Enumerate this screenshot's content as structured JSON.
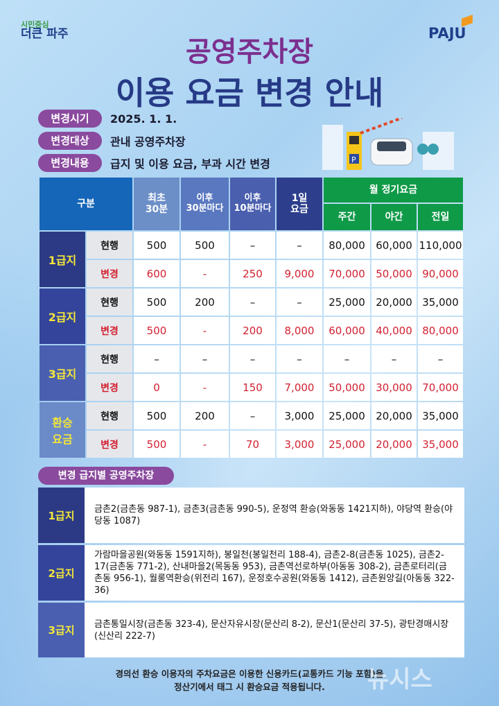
{
  "logo_left": {
    "small": "시민중심",
    "big": "더큰 파주"
  },
  "logo_right": "PAJU",
  "title": {
    "line1": "공영주차장",
    "line2": "이용 요금 변경 안내"
  },
  "info": [
    {
      "label": "변경시기",
      "value": "2025. 1. 1."
    },
    {
      "label": "변경대상",
      "value": "관내 공영주차장"
    },
    {
      "label": "변경내용",
      "value": "급지 및 이용 요금, 부과 시간 변경"
    }
  ],
  "table": {
    "headers": {
      "category": "구분",
      "first30": "최초\n30분",
      "per30": "이후\n30분마다",
      "per10": "이후\n10분마다",
      "daily": "1일\n요금",
      "monthly": "월 정기요금",
      "day": "주간",
      "night": "야간",
      "full": "전일"
    },
    "groups": [
      {
        "name": "1급지",
        "rows": [
          {
            "type": "현행",
            "values": [
              "500",
              "500",
              "–",
              "–",
              "80,000",
              "60,000",
              "110,000"
            ]
          },
          {
            "type": "변경",
            "values": [
              "600",
              "-",
              "250",
              "9,000",
              "70,000",
              "50,000",
              "90,000"
            ]
          }
        ]
      },
      {
        "name": "2급지",
        "rows": [
          {
            "type": "현행",
            "values": [
              "500",
              "200",
              "–",
              "–",
              "25,000",
              "20,000",
              "35,000"
            ]
          },
          {
            "type": "변경",
            "values": [
              "500",
              "-",
              "200",
              "8,000",
              "60,000",
              "40,000",
              "80,000"
            ]
          }
        ]
      },
      {
        "name": "3급지",
        "rows": [
          {
            "type": "현행",
            "values": [
              "–",
              "–",
              "–",
              "–",
              "–",
              "–",
              "–"
            ]
          },
          {
            "type": "변경",
            "values": [
              "0",
              "-",
              "150",
              "7,000",
              "50,000",
              "30,000",
              "70,000"
            ]
          }
        ]
      },
      {
        "name": "환승\n요금",
        "rows": [
          {
            "type": "현행",
            "values": [
              "500",
              "200",
              "–",
              "3,000",
              "25,000",
              "20,000",
              "35,000"
            ]
          },
          {
            "type": "변경",
            "values": [
              "500",
              "-",
              "70",
              "3,000",
              "25,000",
              "20,000",
              "35,000"
            ]
          }
        ]
      }
    ]
  },
  "section_title": "변경 급지별 공영주차장",
  "lots": [
    {
      "grade": "1급지",
      "text": "금촌2(금촌동 987-1), 금촌3(금촌동 990-5), 운정역 환승(와동동 1421지하), 야당역 환승(야당동 1087)"
    },
    {
      "grade": "2급지",
      "text": "가람마을공원(와동동 1591지하), 봉일천(봉일천리 188-4), 금촌2-8(금촌동 1025), 금촌2-17(금촌동 771-2), 산내마을2(목동동 953), 금촌역선로하부(아동동 308-2), 금촌로터리(금촌동 956-1), 월롱역환승(위전리 167), 운정호수공원(와동동 1412), 금촌원앙길(아동동 322-36)"
    },
    {
      "grade": "3급지",
      "text": "금촌통일시장(금촌동 323-4), 문산자유시장(문산리 8-2), 문산1(문산리 37-5), 광탄경매시장(신산리 222-7)"
    }
  ],
  "footer": {
    "line1": "경의선 환승 이용자의 주차요금은 이용한 신용카드(교통카드 기능 포함)을",
    "line2": "정산기에서 태그 시 환승요금 적용됩니다."
  },
  "watermark": "뉴시스",
  "colors": {
    "purple": "#7b2f8e",
    "navy": "#263a86",
    "green": "#0f9a48",
    "red": "#d21f2f",
    "yellow": "#f3e63a"
  }
}
